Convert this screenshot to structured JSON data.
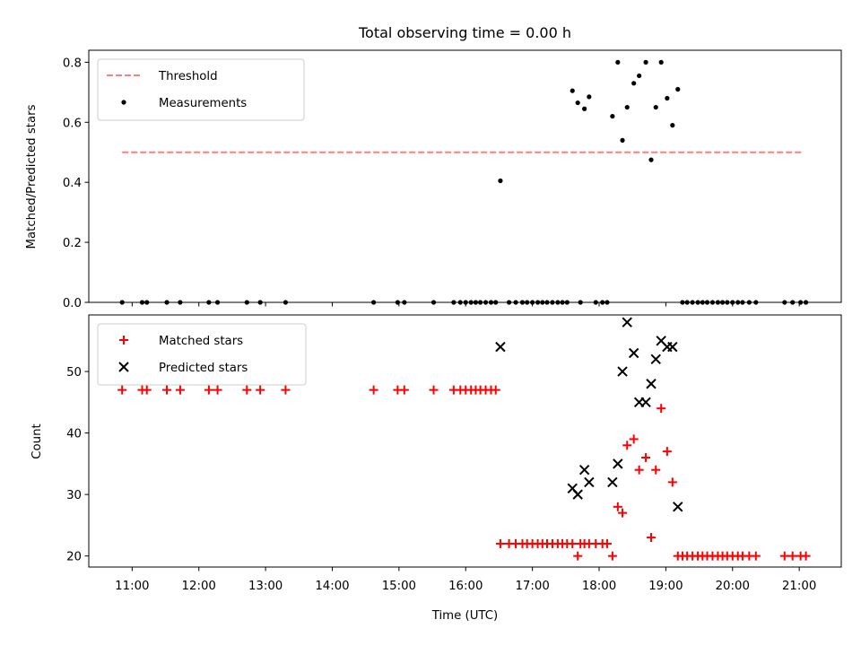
{
  "chart_data": [
    {
      "type": "scatter",
      "title": "Total observing time = 0.00 h",
      "xlabel": "",
      "ylabel": "Matched/Predicted stars",
      "ylim": [
        0,
        0.84
      ],
      "xlim_hours": [
        10.35,
        21.63
      ],
      "yticks": [
        0.0,
        0.2,
        0.4,
        0.6,
        0.8
      ],
      "ytick_labels": [
        "0.0",
        "0.2",
        "0.4",
        "0.6",
        "0.8"
      ],
      "grid": false,
      "legend_position": "upper-left",
      "threshold": {
        "name": "Threshold",
        "value": 0.5,
        "x_range": [
          10.85,
          21.05
        ],
        "color": "#ff7f7f",
        "style": "dashed"
      },
      "series": [
        {
          "name": "Measurements",
          "color": "#000000",
          "marker": "dot",
          "x": [
            10.85,
            11.15,
            11.22,
            11.52,
            11.72,
            12.15,
            12.28,
            12.72,
            12.92,
            13.3,
            14.62,
            14.98,
            15.08,
            15.52,
            15.82,
            15.92,
            16.0,
            16.08,
            16.15,
            16.22,
            16.3,
            16.38,
            16.45,
            16.52,
            16.65,
            16.75,
            16.85,
            16.92,
            17.0,
            17.08,
            17.15,
            17.22,
            17.3,
            17.38,
            17.45,
            17.52,
            17.6,
            17.68,
            17.72,
            17.78,
            17.85,
            17.95,
            18.05,
            18.12,
            18.2,
            18.28,
            18.35,
            18.42,
            18.52,
            18.6,
            18.7,
            18.78,
            18.85,
            18.93,
            19.02,
            19.1,
            19.18,
            19.25,
            19.32,
            19.4,
            19.48,
            19.55,
            19.62,
            19.7,
            19.78,
            19.85,
            19.92,
            20.0,
            20.08,
            20.15,
            20.25,
            20.35,
            20.78,
            20.9,
            21.02,
            21.1
          ],
          "y": [
            0,
            0,
            0,
            0,
            0,
            0,
            0,
            0,
            0,
            0,
            0,
            0,
            0,
            0,
            0,
            0,
            0,
            0,
            0,
            0,
            0,
            0,
            0,
            0.405,
            0,
            0,
            0,
            0,
            0,
            0,
            0,
            0,
            0,
            0,
            0,
            0,
            0.705,
            0.665,
            0,
            0.645,
            0.685,
            0,
            0,
            0,
            0.62,
            0.8,
            0.54,
            0.65,
            0.73,
            0.755,
            0.8,
            0.475,
            0.65,
            0.8,
            0.68,
            0.59,
            0.71,
            0,
            0,
            0,
            0,
            0,
            0,
            0,
            0,
            0,
            0,
            0,
            0,
            0,
            0,
            0,
            0,
            0,
            0,
            0
          ]
        }
      ]
    },
    {
      "type": "scatter",
      "title": "",
      "xlabel": "Time (UTC)",
      "ylabel": "Count",
      "ylim": [
        18.2,
        59.2
      ],
      "xlim_hours": [
        10.35,
        21.63
      ],
      "yticks": [
        20,
        30,
        40,
        50
      ],
      "ytick_labels": [
        "20",
        "30",
        "40",
        "50"
      ],
      "xtick_hours": [
        11,
        12,
        13,
        14,
        15,
        16,
        17,
        18,
        19,
        20,
        21
      ],
      "xtick_labels": [
        "11:00",
        "12:00",
        "13:00",
        "14:00",
        "15:00",
        "16:00",
        "17:00",
        "18:00",
        "19:00",
        "20:00",
        "21:00"
      ],
      "grid": false,
      "legend_position": "upper-left",
      "series": [
        {
          "name": "Matched stars",
          "color": "#ff0000",
          "marker": "plus",
          "x": [
            10.85,
            11.15,
            11.22,
            11.52,
            11.72,
            12.15,
            12.28,
            12.72,
            12.92,
            13.3,
            14.62,
            14.98,
            15.08,
            15.52,
            15.82,
            15.92,
            16.0,
            16.08,
            16.15,
            16.22,
            16.3,
            16.38,
            16.45,
            16.52,
            16.65,
            16.75,
            16.85,
            16.92,
            17.0,
            17.08,
            17.15,
            17.22,
            17.3,
            17.38,
            17.45,
            17.52,
            17.6,
            17.68,
            17.72,
            17.78,
            17.85,
            17.95,
            18.05,
            18.12,
            18.2,
            18.28,
            18.35,
            18.42,
            18.52,
            18.6,
            18.7,
            18.78,
            18.85,
            18.93,
            19.02,
            19.1,
            19.18,
            19.25,
            19.32,
            19.4,
            19.48,
            19.55,
            19.62,
            19.7,
            19.78,
            19.85,
            19.92,
            20.0,
            20.08,
            20.15,
            20.25,
            20.35,
            20.78,
            20.9,
            21.02,
            21.1
          ],
          "y": [
            47,
            47,
            47,
            47,
            47,
            47,
            47,
            47,
            47,
            47,
            47,
            47,
            47,
            47,
            47,
            47,
            47,
            47,
            47,
            47,
            47,
            47,
            47,
            22,
            22,
            22,
            22,
            22,
            22,
            22,
            22,
            22,
            22,
            22,
            22,
            22,
            22,
            20,
            22,
            22,
            22,
            22,
            22,
            22,
            20,
            28,
            27,
            38,
            39,
            34,
            36,
            23,
            34,
            44,
            37,
            32,
            20,
            20,
            20,
            20,
            20,
            20,
            20,
            20,
            20,
            20,
            20,
            20,
            20,
            20,
            20,
            20,
            20,
            20,
            20,
            20
          ]
        },
        {
          "name": "Predicted stars",
          "color": "#000000",
          "marker": "x",
          "x": [
            16.52,
            17.6,
            17.68,
            17.78,
            17.85,
            18.2,
            18.28,
            18.35,
            18.42,
            18.52,
            18.6,
            18.7,
            18.78,
            18.85,
            18.93,
            19.02,
            19.1,
            19.18
          ],
          "y": [
            54,
            31,
            30,
            34,
            32,
            32,
            35,
            50,
            58,
            53,
            45,
            45,
            48,
            52,
            55,
            54,
            54,
            28
          ]
        }
      ]
    }
  ]
}
